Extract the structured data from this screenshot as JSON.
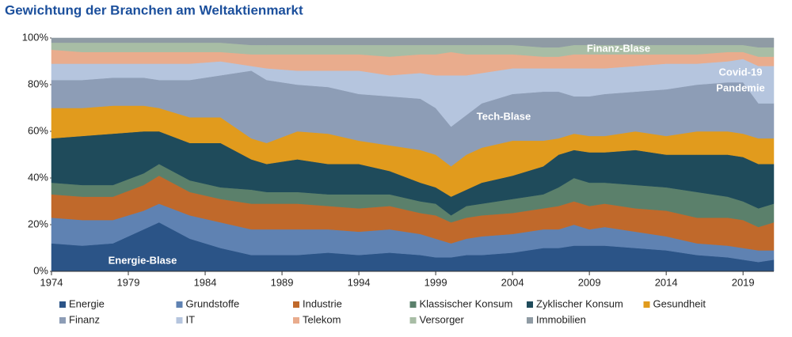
{
  "chart_data": {
    "type": "stacked_area",
    "title": "Gewichtung der Branchen am Weltaktienmarkt",
    "x": [
      1974,
      1976,
      1978,
      1980,
      1981,
      1983,
      1985,
      1987,
      1988,
      1990,
      1992,
      1994,
      1996,
      1998,
      1999,
      2000,
      2001,
      2002,
      2004,
      2006,
      2007,
      2008,
      2009,
      2010,
      2012,
      2014,
      2016,
      2018,
      2019,
      2020,
      2021
    ],
    "xlim": [
      1974,
      2021
    ],
    "xticks": [
      1974,
      1979,
      1984,
      1989,
      1994,
      1999,
      2004,
      2009,
      2014,
      2019
    ],
    "ylim": [
      0,
      100
    ],
    "yticks": [
      {
        "value": 0,
        "label": "0%"
      },
      {
        "value": 20,
        "label": "20%"
      },
      {
        "value": 40,
        "label": "40%"
      },
      {
        "value": 60,
        "label": "60%"
      },
      {
        "value": 80,
        "label": "80%"
      },
      {
        "value": 100,
        "label": "100%"
      }
    ],
    "series": [
      {
        "name": "Energie",
        "color": "#2b5487",
        "values": [
          12,
          11,
          12,
          18,
          21,
          14,
          10,
          7,
          7,
          7,
          8,
          7,
          8,
          7,
          6,
          6,
          7,
          7,
          8,
          10,
          10,
          11,
          11,
          11,
          10,
          9,
          7,
          6,
          5,
          4,
          5
        ]
      },
      {
        "name": "Grundstoffe",
        "color": "#5f82b2",
        "values": [
          11,
          11,
          10,
          8,
          8,
          10,
          11,
          11,
          11,
          11,
          10,
          10,
          10,
          9,
          8,
          6,
          7,
          8,
          8,
          8,
          8,
          9,
          7,
          8,
          7,
          6,
          5,
          5,
          5,
          5,
          4
        ]
      },
      {
        "name": "Industrie",
        "color": "#c0692b",
        "values": [
          10,
          10,
          10,
          11,
          12,
          10,
          10,
          11,
          11,
          11,
          10,
          10,
          10,
          9,
          10,
          9,
          9,
          9,
          9,
          9,
          10,
          10,
          10,
          10,
          10,
          11,
          11,
          12,
          12,
          10,
          12
        ]
      },
      {
        "name": "Klassischer Konsum",
        "color": "#5b806b",
        "values": [
          5,
          5,
          5,
          5,
          5,
          5,
          5,
          6,
          5,
          5,
          5,
          6,
          5,
          5,
          5,
          3,
          5,
          5,
          6,
          6,
          8,
          10,
          10,
          9,
          10,
          10,
          11,
          9,
          8,
          8,
          8
        ]
      },
      {
        "name": "Zyklischer Konsum",
        "color": "#1f4b5b",
        "values": [
          19,
          21,
          22,
          18,
          14,
          16,
          19,
          13,
          12,
          14,
          13,
          13,
          10,
          8,
          7,
          8,
          7,
          9,
          10,
          12,
          14,
          12,
          13,
          13,
          15,
          14,
          16,
          18,
          19,
          19,
          17
        ]
      },
      {
        "name": "Gesundheit",
        "color": "#e19b1d",
        "values": [
          13,
          12,
          12,
          11,
          10,
          11,
          11,
          9,
          9,
          12,
          13,
          10,
          11,
          14,
          14,
          13,
          15,
          15,
          15,
          11,
          7,
          7,
          7,
          7,
          8,
          8,
          10,
          10,
          10,
          11,
          11
        ]
      },
      {
        "name": "Finanz",
        "color": "#8d9db6",
        "values": [
          12,
          12,
          12,
          12,
          12,
          16,
          18,
          29,
          27,
          20,
          20,
          20,
          21,
          22,
          20,
          17,
          17,
          19,
          20,
          21,
          20,
          16,
          17,
          18,
          17,
          20,
          20,
          21,
          22,
          15,
          15
        ]
      },
      {
        "name": "IT",
        "color": "#b5c5de",
        "values": [
          7,
          7,
          6,
          6,
          7,
          7,
          6,
          2,
          5,
          6,
          7,
          10,
          9,
          11,
          14,
          22,
          17,
          13,
          11,
          10,
          10,
          12,
          12,
          11,
          11,
          11,
          9,
          9,
          10,
          16,
          16
        ]
      },
      {
        "name": "Telekom",
        "color": "#e9ac8d",
        "values": [
          6,
          5,
          5,
          5,
          5,
          5,
          4,
          5,
          6,
          7,
          7,
          7,
          8,
          8,
          9,
          10,
          9,
          8,
          6,
          5,
          5,
          6,
          6,
          6,
          5,
          4,
          4,
          4,
          3,
          4,
          4
        ]
      },
      {
        "name": "Versorger",
        "color": "#a8bda5",
        "values": [
          3,
          4,
          4,
          4,
          4,
          4,
          4,
          4,
          4,
          4,
          4,
          4,
          5,
          4,
          4,
          3,
          4,
          4,
          4,
          4,
          4,
          4,
          4,
          4,
          4,
          4,
          4,
          3,
          3,
          4,
          4
        ]
      },
      {
        "name": "Immobilien",
        "color": "#8f9ba4",
        "values": [
          2,
          2,
          2,
          2,
          2,
          2,
          2,
          3,
          3,
          3,
          3,
          3,
          3,
          3,
          3,
          3,
          3,
          3,
          3,
          4,
          4,
          3,
          3,
          3,
          3,
          3,
          3,
          3,
          3,
          4,
          4
        ]
      }
    ],
    "annotations": [
      "Energie-Blase",
      "Tech-Blase",
      "Finanz-Blase",
      "Covid-19",
      "Pandemie"
    ]
  }
}
